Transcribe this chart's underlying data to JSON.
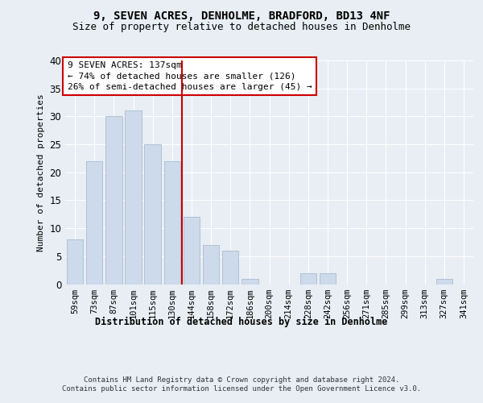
{
  "title1": "9, SEVEN ACRES, DENHOLME, BRADFORD, BD13 4NF",
  "title2": "Size of property relative to detached houses in Denholme",
  "xlabel": "Distribution of detached houses by size in Denholme",
  "ylabel": "Number of detached properties",
  "categories": [
    "59sqm",
    "73sqm",
    "87sqm",
    "101sqm",
    "115sqm",
    "130sqm",
    "144sqm",
    "158sqm",
    "172sqm",
    "186sqm",
    "200sqm",
    "214sqm",
    "228sqm",
    "242sqm",
    "256sqm",
    "271sqm",
    "285sqm",
    "299sqm",
    "313sqm",
    "327sqm",
    "341sqm"
  ],
  "values": [
    8,
    22,
    30,
    31,
    25,
    22,
    12,
    7,
    6,
    1,
    0,
    0,
    2,
    2,
    0,
    0,
    0,
    0,
    0,
    1,
    0
  ],
  "bar_color": "#ccdaeb",
  "bar_edge_color": "#aabcce",
  "vline_color": "#cc0000",
  "annotation_text": "9 SEVEN ACRES: 137sqm\n← 74% of detached houses are smaller (126)\n26% of semi-detached houses are larger (45) →",
  "annotation_box_color": "#ffffff",
  "annotation_box_edge": "#cc0000",
  "ylim": [
    0,
    40
  ],
  "yticks": [
    0,
    5,
    10,
    15,
    20,
    25,
    30,
    35,
    40
  ],
  "footnote": "Contains HM Land Registry data © Crown copyright and database right 2024.\nContains public sector information licensed under the Open Government Licence v3.0.",
  "bg_color": "#e8eef4",
  "plot_bg_color": "#e8eef4"
}
